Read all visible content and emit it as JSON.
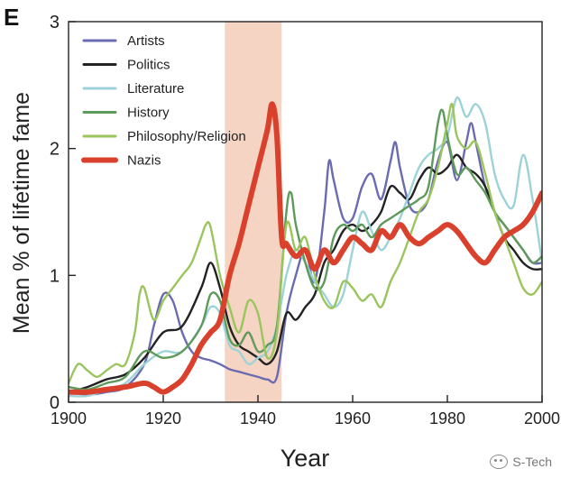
{
  "panel_label": "E",
  "watermark": {
    "text": "S-Tech",
    "icon": "wechat-icon"
  },
  "chart_data": {
    "type": "line",
    "title": "",
    "xlabel": "Year",
    "ylabel": "Mean % of lifetime fame",
    "xlim": [
      1900,
      2000
    ],
    "ylim": [
      0,
      3
    ],
    "xticks": [
      1900,
      1920,
      1940,
      1960,
      1980,
      2000
    ],
    "yticks": [
      0,
      1,
      2,
      3
    ],
    "legend_position": "top-left",
    "shaded_region": {
      "x": [
        1933,
        1945
      ],
      "color": "#f6d2c1"
    },
    "colors": {
      "Artists": "#6a6bb0",
      "Politics": "#222222",
      "Literature": "#9dd3d8",
      "History": "#5e9a5a",
      "Philosophy/Religion": "#9ac55c",
      "Nazis": "#d9412c"
    },
    "series": [
      {
        "name": "Artists",
        "x": [
          1900,
          1904,
          1908,
          1912,
          1916,
          1918,
          1920,
          1922,
          1924,
          1926,
          1928,
          1930,
          1932,
          1934,
          1936,
          1938,
          1940,
          1942,
          1944,
          1946,
          1948,
          1950,
          1952,
          1954,
          1955,
          1956,
          1958,
          1960,
          1962,
          1964,
          1966,
          1968,
          1969,
          1970,
          1972,
          1974,
          1976,
          1978,
          1980,
          1982,
          1984,
          1985,
          1986,
          1988,
          1990,
          1992,
          1994,
          1996,
          1998,
          2000
        ],
        "y": [
          0.08,
          0.06,
          0.08,
          0.12,
          0.3,
          0.6,
          0.85,
          0.8,
          0.55,
          0.4,
          0.35,
          0.33,
          0.3,
          0.26,
          0.24,
          0.22,
          0.2,
          0.18,
          0.2,
          0.7,
          1.0,
          1.2,
          0.95,
          1.5,
          1.9,
          1.75,
          1.45,
          1.45,
          1.7,
          1.8,
          1.6,
          1.9,
          2.05,
          1.85,
          1.55,
          1.5,
          1.6,
          1.9,
          2.05,
          1.75,
          2.05,
          2.2,
          2.05,
          1.7,
          1.5,
          1.4,
          1.3,
          1.2,
          1.1,
          1.1
        ]
      },
      {
        "name": "Politics",
        "x": [
          1900,
          1904,
          1908,
          1912,
          1916,
          1920,
          1924,
          1928,
          1930,
          1932,
          1934,
          1936,
          1938,
          1940,
          1942,
          1944,
          1946,
          1948,
          1950,
          1952,
          1954,
          1956,
          1958,
          1960,
          1962,
          1964,
          1966,
          1968,
          1970,
          1972,
          1974,
          1976,
          1978,
          1980,
          1982,
          1984,
          1986,
          1988,
          1990,
          1992,
          1994,
          1996,
          1998,
          2000
        ],
        "y": [
          0.08,
          0.12,
          0.18,
          0.22,
          0.35,
          0.55,
          0.6,
          0.9,
          1.1,
          0.9,
          0.6,
          0.45,
          0.4,
          0.35,
          0.3,
          0.4,
          0.7,
          0.65,
          0.75,
          0.85,
          1.1,
          1.2,
          1.35,
          1.4,
          1.35,
          1.4,
          1.5,
          1.7,
          1.65,
          1.6,
          1.75,
          1.85,
          1.8,
          1.85,
          1.95,
          1.85,
          1.8,
          1.7,
          1.5,
          1.3,
          1.2,
          1.1,
          1.05,
          1.05
        ]
      },
      {
        "name": "Literature",
        "x": [
          1900,
          1904,
          1908,
          1912,
          1916,
          1920,
          1924,
          1928,
          1930,
          1932,
          1934,
          1936,
          1938,
          1940,
          1942,
          1944,
          1946,
          1948,
          1950,
          1952,
          1954,
          1956,
          1958,
          1960,
          1962,
          1964,
          1966,
          1968,
          1970,
          1972,
          1974,
          1976,
          1978,
          1980,
          1982,
          1984,
          1986,
          1988,
          1990,
          1992,
          1994,
          1996,
          1998,
          2000
        ],
        "y": [
          0.05,
          0.05,
          0.1,
          0.15,
          0.3,
          0.4,
          0.4,
          0.6,
          0.75,
          0.7,
          0.45,
          0.4,
          0.3,
          0.35,
          0.4,
          0.6,
          1.0,
          1.2,
          1.1,
          0.95,
          0.85,
          0.75,
          0.85,
          1.2,
          1.5,
          1.35,
          1.2,
          1.3,
          1.45,
          1.65,
          1.85,
          1.95,
          2.0,
          2.1,
          2.4,
          2.25,
          2.35,
          2.2,
          1.8,
          1.6,
          1.55,
          1.95,
          1.6,
          1.1
        ]
      },
      {
        "name": "History",
        "x": [
          1900,
          1904,
          1908,
          1912,
          1916,
          1920,
          1924,
          1928,
          1930,
          1932,
          1934,
          1936,
          1938,
          1940,
          1942,
          1944,
          1946,
          1947,
          1948,
          1950,
          1952,
          1954,
          1956,
          1958,
          1960,
          1962,
          1964,
          1966,
          1968,
          1970,
          1972,
          1974,
          1976,
          1978,
          1979,
          1980,
          1982,
          1984,
          1986,
          1988,
          1990,
          1992,
          1994,
          1996,
          1998,
          2000
        ],
        "y": [
          0.12,
          0.1,
          0.15,
          0.2,
          0.4,
          0.35,
          0.4,
          0.6,
          0.85,
          0.8,
          0.5,
          0.45,
          0.55,
          0.4,
          0.45,
          0.6,
          1.5,
          1.65,
          1.4,
          1.1,
          0.9,
          0.95,
          1.3,
          1.4,
          1.35,
          1.4,
          1.3,
          1.4,
          1.45,
          1.5,
          1.55,
          1.6,
          1.7,
          2.2,
          2.3,
          2.1,
          1.8,
          1.85,
          1.75,
          1.65,
          1.5,
          1.4,
          1.3,
          1.2,
          1.1,
          1.15
        ]
      },
      {
        "name": "Philosophy/Religion",
        "x": [
          1900,
          1902,
          1904,
          1906,
          1908,
          1910,
          1912,
          1914,
          1915,
          1916,
          1918,
          1920,
          1922,
          1924,
          1926,
          1928,
          1929,
          1930,
          1932,
          1934,
          1936,
          1938,
          1940,
          1942,
          1944,
          1946,
          1948,
          1950,
          1952,
          1954,
          1956,
          1958,
          1960,
          1962,
          1964,
          1966,
          1968,
          1970,
          1972,
          1974,
          1976,
          1978,
          1980,
          1981,
          1982,
          1984,
          1986,
          1988,
          1990,
          1992,
          1994,
          1996,
          1998,
          2000
        ],
        "y": [
          0.15,
          0.3,
          0.25,
          0.2,
          0.25,
          0.3,
          0.3,
          0.55,
          0.85,
          0.9,
          0.65,
          0.8,
          0.9,
          1.0,
          1.1,
          1.3,
          1.4,
          1.38,
          1.0,
          0.75,
          0.55,
          0.8,
          0.7,
          0.35,
          0.55,
          1.4,
          1.2,
          1.3,
          1.0,
          0.8,
          0.75,
          0.95,
          0.9,
          0.8,
          0.85,
          0.75,
          0.95,
          1.1,
          1.3,
          1.5,
          1.6,
          1.85,
          2.2,
          2.35,
          2.1,
          2.0,
          2.05,
          1.8,
          1.5,
          1.3,
          1.1,
          0.9,
          0.85,
          0.95
        ]
      },
      {
        "name": "Nazis",
        "x": [
          1900,
          1904,
          1908,
          1912,
          1916,
          1918,
          1920,
          1922,
          1924,
          1926,
          1928,
          1930,
          1932,
          1934,
          1936,
          1938,
          1940,
          1942,
          1943,
          1944,
          1945,
          1946,
          1948,
          1950,
          1952,
          1954,
          1956,
          1958,
          1960,
          1962,
          1964,
          1966,
          1968,
          1970,
          1972,
          1974,
          1976,
          1978,
          1980,
          1982,
          1984,
          1986,
          1988,
          1990,
          1992,
          1994,
          1996,
          1998,
          2000
        ],
        "y": [
          0.08,
          0.08,
          0.1,
          0.12,
          0.15,
          0.12,
          0.08,
          0.12,
          0.18,
          0.3,
          0.45,
          0.55,
          0.65,
          1.0,
          1.25,
          1.55,
          1.85,
          2.15,
          2.35,
          2.1,
          1.3,
          1.25,
          1.15,
          1.2,
          1.05,
          1.2,
          1.1,
          1.2,
          1.3,
          1.25,
          1.2,
          1.35,
          1.3,
          1.4,
          1.3,
          1.25,
          1.3,
          1.35,
          1.4,
          1.35,
          1.25,
          1.15,
          1.1,
          1.2,
          1.3,
          1.35,
          1.4,
          1.5,
          1.65
        ]
      }
    ]
  }
}
